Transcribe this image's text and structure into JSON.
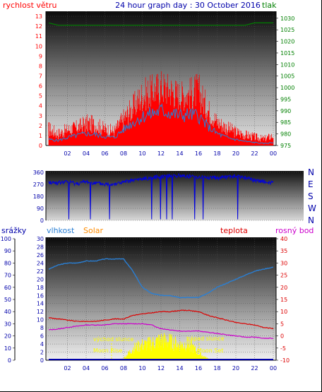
{
  "header": {
    "left_label": "rychlost větru",
    "title": "24 hour graph day : 30 October 2016",
    "right_label": "tlak"
  },
  "colors": {
    "wind": "#ff0000",
    "wind_avg": "#2a7fd4",
    "pressure": "#008000",
    "direction": "#0000dd",
    "humidity": "#2a7fd4",
    "temperature": "#dd0000",
    "dewpoint": "#cc00cc",
    "solar": "#ffff00",
    "rain": "#0000aa",
    "title": "#0000aa",
    "solar_label": "#ff8c00"
  },
  "chart_data": [
    {
      "type": "line",
      "name": "wind-pressure",
      "x_ticks": [
        "02",
        "04",
        "06",
        "08",
        "10",
        "12",
        "14",
        "16",
        "18",
        "20",
        "22",
        "00"
      ],
      "y_left_ticks": [
        0,
        1,
        2,
        3,
        4,
        5,
        6,
        7,
        8,
        9,
        10,
        11,
        12,
        13
      ],
      "y_right_ticks": [
        975,
        980,
        985,
        990,
        995,
        1000,
        1005,
        1010,
        1015,
        1020,
        1025,
        1030
      ],
      "ylim_left": [
        0,
        13.5
      ],
      "ylim_right": [
        975,
        1033
      ],
      "x_hours": [
        0,
        1,
        2,
        3,
        4,
        5,
        6,
        7,
        8,
        9,
        10,
        11,
        12,
        13,
        14,
        15,
        16,
        17,
        18,
        19,
        20,
        21,
        22,
        23,
        24
      ],
      "gust_max": [
        2.5,
        1.8,
        2.3,
        2.6,
        3.2,
        3.0,
        2.4,
        2.1,
        3.8,
        5.2,
        6.8,
        7.2,
        7.8,
        7.4,
        6.6,
        6.9,
        7.5,
        5.0,
        3.3,
        2.6,
        2.0,
        1.6,
        1.3,
        1.0,
        1.5
      ],
      "gust_min": [
        0.3,
        0.2,
        0.4,
        0.5,
        0.6,
        0.6,
        0.4,
        0.3,
        0.8,
        1.5,
        2.2,
        2.5,
        2.8,
        2.6,
        2.4,
        2.4,
        2.2,
        1.4,
        0.8,
        0.5,
        0.3,
        0.2,
        0.1,
        0.1,
        0.2
      ],
      "wind_avg": [
        0.6,
        0.5,
        0.8,
        1.0,
        1.2,
        1.1,
        0.9,
        0.8,
        1.6,
        2.3,
        2.9,
        3.2,
        3.5,
        3.3,
        3.0,
        3.1,
        3.0,
        1.9,
        1.2,
        0.8,
        0.6,
        0.4,
        0.3,
        0.2,
        0.3
      ],
      "pressure": [
        1028,
        1027,
        1027,
        1027,
        1027,
        1027,
        1027,
        1027,
        1027,
        1027,
        1027,
        1027,
        1027,
        1027,
        1027,
        1027,
        1027,
        1027,
        1027,
        1027,
        1027,
        1027,
        1028,
        1028,
        1028
      ]
    },
    {
      "type": "line",
      "name": "wind-direction",
      "x_ticks": [
        "02",
        "04",
        "06",
        "08",
        "10",
        "12",
        "14",
        "16",
        "18",
        "20",
        "22",
        "00"
      ],
      "y_ticks": [
        0,
        90,
        180,
        270,
        360
      ],
      "ylim": [
        0,
        360
      ],
      "right_labels": [
        "N",
        "W",
        "S",
        "E",
        "N"
      ],
      "x_hours": [
        0,
        1,
        2,
        3,
        4,
        5,
        6,
        7,
        8,
        9,
        10,
        11,
        12,
        13,
        14,
        15,
        16,
        17,
        18,
        19,
        20,
        21,
        22,
        23,
        24
      ],
      "direction": [
        285,
        280,
        290,
        275,
        290,
        280,
        270,
        275,
        285,
        300,
        310,
        320,
        330,
        335,
        335,
        330,
        325,
        320,
        320,
        325,
        330,
        320,
        300,
        290,
        280
      ]
    },
    {
      "type": "line",
      "name": "humidity-temperature",
      "series_labels": {
        "rain": "srážky",
        "humidity": "vlhkost",
        "solar": "Solar",
        "temperature": "teplota",
        "dewpoint": "rosný bod"
      },
      "x_ticks": [
        "02",
        "04",
        "06",
        "08",
        "10",
        "12",
        "14",
        "16",
        "18",
        "20",
        "22",
        "00"
      ],
      "y_rain_ticks": [
        0,
        10,
        20,
        30,
        40,
        50,
        60,
        70,
        80,
        90,
        100
      ],
      "y_humidity_ticks": [
        0,
        2,
        4,
        6,
        8,
        10,
        12,
        14,
        16,
        18,
        20,
        22,
        24,
        26,
        28,
        30
      ],
      "y_temp_ticks": [
        -10,
        -5,
        0,
        5,
        10,
        15,
        20,
        25,
        30,
        35,
        40
      ],
      "x_hours": [
        0,
        1,
        2,
        3,
        4,
        5,
        6,
        7,
        8,
        9,
        10,
        11,
        12,
        13,
        14,
        15,
        16,
        17,
        18,
        19,
        20,
        21,
        22,
        23,
        24
      ],
      "humidity": [
        22.5,
        23.5,
        24,
        24,
        24.5,
        24.5,
        25,
        25,
        25,
        22,
        18,
        16.5,
        16,
        16,
        15.5,
        15.5,
        15.5,
        16.5,
        18,
        19,
        20,
        21,
        22,
        22.5,
        23
      ],
      "temperature": [
        7.5,
        7.0,
        6.5,
        6.0,
        6.0,
        6.0,
        6.5,
        7.0,
        7.0,
        8.5,
        9.0,
        9.5,
        10.0,
        10.0,
        10.5,
        10.5,
        10.0,
        8.5,
        7.5,
        6.5,
        5.5,
        5.0,
        4.5,
        3.5,
        3.0
      ],
      "dewpoint": [
        2.5,
        2.8,
        3.5,
        4.0,
        4.5,
        4.5,
        4.5,
        5.0,
        5.0,
        5.0,
        5.0,
        4.5,
        3.0,
        2.5,
        2.0,
        2.0,
        2.0,
        1.5,
        1.0,
        0.5,
        0.0,
        -0.5,
        -0.5,
        -1.0,
        -1.0
      ],
      "solar_temp_scale": [
        -10,
        -10,
        -10,
        -10,
        -10,
        -10,
        -10,
        -10,
        -9,
        -3,
        -1,
        0,
        2,
        1,
        -1,
        0,
        -6,
        -9,
        -10,
        -10,
        -10,
        -10,
        -10,
        -10,
        -10
      ],
      "rain": [
        0,
        0,
        0,
        0,
        0,
        0,
        0,
        0,
        0,
        0,
        0,
        0,
        0,
        0,
        0,
        0,
        0,
        0,
        0,
        0,
        0,
        0,
        0,
        0,
        0
      ],
      "annotations": {
        "sunrise": "východ slunce",
        "sunset": "západ slunce",
        "moonrise": "Moon Rise",
        "moonset": "Moon Set"
      }
    }
  ]
}
